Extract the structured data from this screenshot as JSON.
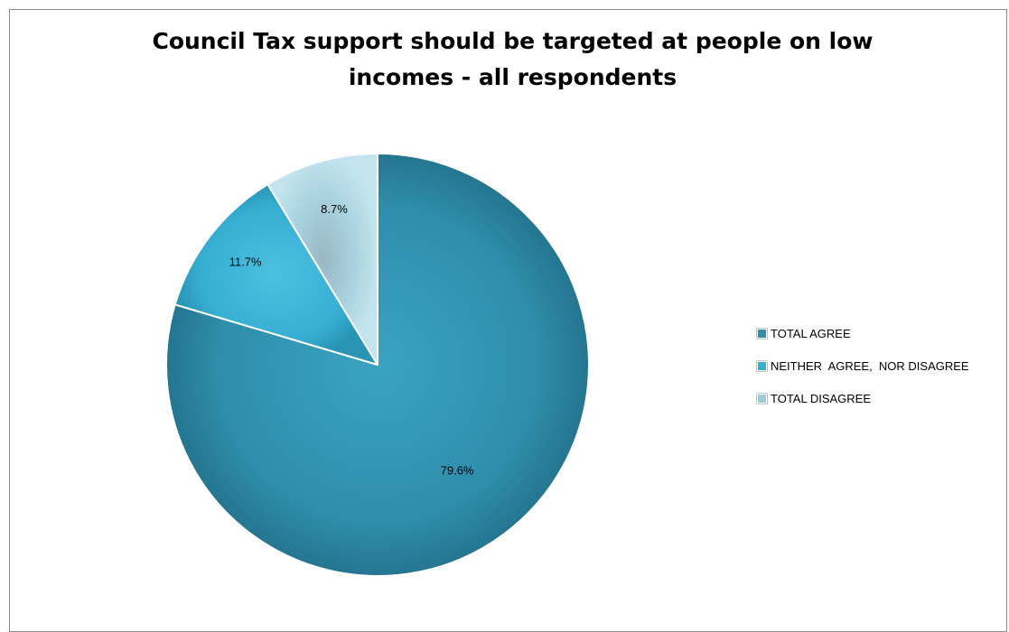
{
  "chart_data": {
    "type": "pie",
    "title": "Council Tax support should be targeted at people on low incomes - all respondents",
    "title_lines": [
      "Council Tax support should be targeted at people on low",
      "incomes - all respondents"
    ],
    "legend_position": "right",
    "slices": [
      {
        "label": "TOTAL AGREE",
        "value": 79.6,
        "data_label": "79.6%",
        "color": "#2f8fae"
      },
      {
        "label": "NEITHER  AGREE,  NOR DISAGREE",
        "value": 11.7,
        "data_label": "11.7%",
        "color": "#36aed2"
      },
      {
        "label": "TOTAL DISAGREE",
        "value": 8.7,
        "data_label": "8.7%",
        "color": "#9ccbd9"
      }
    ]
  }
}
